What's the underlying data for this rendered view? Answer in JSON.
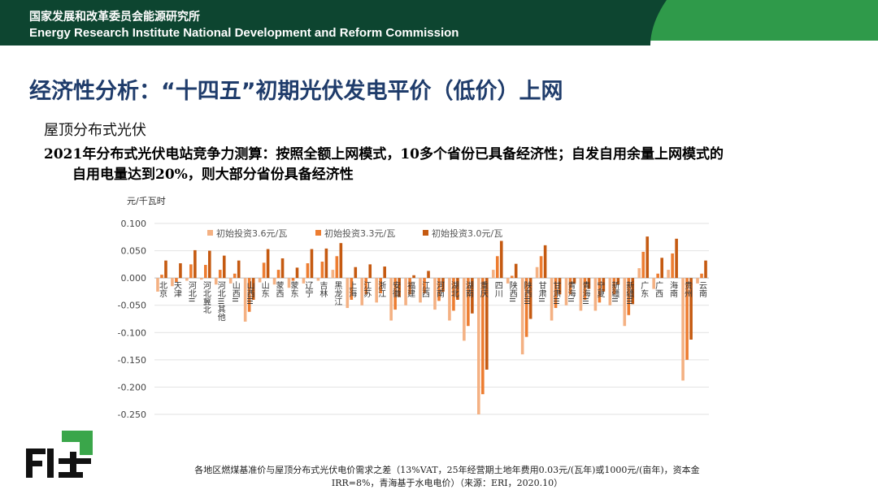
{
  "header": {
    "org_cn": "国家发展和改革委员会能源研究所",
    "org_en": "Energy Research Institute National Development and Reform Commission",
    "colors": {
      "dark": "#0d4530",
      "accent": "#2f9a4a"
    }
  },
  "slide": {
    "title": "经济性分析：“十四五”初期光伏发电平价（低价）上网",
    "subtitle": "屋顶分布式光伏",
    "desc_line1": "2021年分布式光伏电站竞争力测算：按照全额上网模式，10多个省份已具备经济性；自发自用余量上网模式的",
    "desc_line2": "自用电量达到20%，则大部分省份具备经济性",
    "note_line1": "各地区燃煤基准价与屋顶分布式光伏电价需求之差（13%VAT，25年经营期土地年费用0.03元/(瓦年)或1000元/(亩年)，资本金",
    "note_line2": "IRR=8%，青海基于水电电价）（来源：ERI，2020.10）"
  },
  "logo": {
    "icon": "eri-logo-icon"
  },
  "chart_data": {
    "type": "bar",
    "unit_label": "元/千瓦时",
    "ylim": [
      -0.25,
      0.1
    ],
    "yticks": [
      "0.100",
      "0.050",
      "0.000",
      "-0.050",
      "-0.100",
      "-0.150",
      "-0.200",
      "-0.250"
    ],
    "grid": true,
    "legend_position": "top",
    "categories": [
      "北京",
      "天津",
      "河北II",
      "河北冀北",
      "河北III其他",
      "山西II",
      "山西III",
      "山东",
      "蒙西",
      "蒙东",
      "辽宁",
      "吉林",
      "黑龙江",
      "上海",
      "江苏",
      "浙江",
      "安徽",
      "福建",
      "江西",
      "河南",
      "湖北",
      "湖南",
      "重庆",
      "四川",
      "陕西II",
      "陕西III",
      "甘肃II",
      "甘肃III",
      "青海II",
      "青海III",
      "宁夏",
      "新疆II",
      "新疆III",
      "广东",
      "广西",
      "海南",
      "贵州",
      "云南"
    ],
    "series": [
      {
        "name": "初始投资3.6元/瓦",
        "color": "#f4b183",
        "values": [
          -0.025,
          -0.015,
          -0.005,
          -0.003,
          -0.012,
          -0.01,
          -0.08,
          -0.008,
          -0.012,
          -0.018,
          -0.01,
          -0.005,
          0.015,
          -0.055,
          -0.05,
          -0.045,
          -0.078,
          -0.05,
          -0.045,
          -0.058,
          -0.078,
          -0.115,
          -0.25,
          0.015,
          -0.01,
          -0.14,
          0.02,
          -0.078,
          -0.05,
          -0.06,
          -0.06,
          -0.05,
          -0.088,
          0.018,
          -0.02,
          0.015,
          -0.188,
          -0.01
        ]
      },
      {
        "name": "初始投资3.3元/瓦",
        "color": "#ed7d31",
        "values": [
          0.006,
          -0.008,
          0.025,
          0.024,
          0.015,
          0.008,
          -0.062,
          0.028,
          0.015,
          -0.005,
          0.027,
          0.03,
          0.04,
          -0.04,
          -0.03,
          -0.028,
          -0.058,
          -0.03,
          -0.028,
          -0.042,
          -0.06,
          -0.088,
          -0.213,
          0.04,
          0.004,
          -0.108,
          0.04,
          -0.055,
          -0.03,
          -0.04,
          -0.045,
          -0.03,
          -0.068,
          0.048,
          0.008,
          0.045,
          -0.15,
          0.008
        ]
      },
      {
        "name": "初始投资3.0元/瓦",
        "color": "#c55a11",
        "values": [
          0.032,
          0.027,
          0.051,
          0.05,
          0.041,
          0.032,
          -0.04,
          0.053,
          0.036,
          0.019,
          0.053,
          0.054,
          0.064,
          0.02,
          0.025,
          0.021,
          -0.035,
          0.005,
          0.013,
          -0.025,
          -0.04,
          -0.065,
          -0.168,
          0.068,
          0.026,
          -0.075,
          0.06,
          -0.03,
          -0.01,
          -0.02,
          -0.025,
          -0.012,
          -0.048,
          0.076,
          0.037,
          0.072,
          -0.113,
          0.032
        ]
      }
    ]
  }
}
